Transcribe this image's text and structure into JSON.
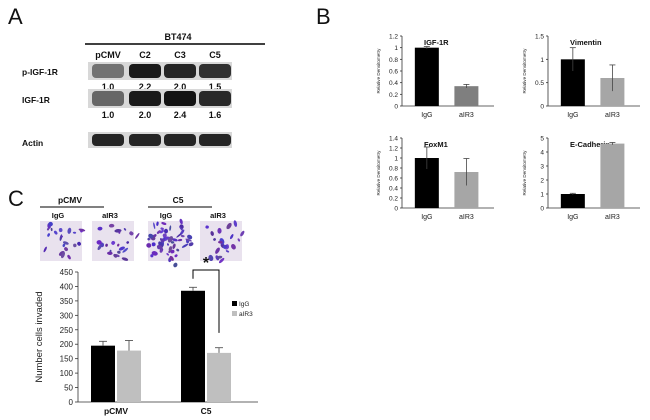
{
  "panel_a": {
    "letter": "A",
    "cell_line": "BT474",
    "lanes": [
      "pCMV",
      "C2",
      "C3",
      "C5"
    ],
    "rows": [
      {
        "name": "p-IGF-1R",
        "values": [
          "1.0",
          "2.2",
          "2.0",
          "1.5"
        ],
        "intensity": [
          0.55,
          0.95,
          0.9,
          0.85
        ]
      },
      {
        "name": "IGF-1R",
        "values": [
          "1.0",
          "2.0",
          "2.4",
          "1.6"
        ],
        "intensity": [
          0.6,
          0.95,
          0.98,
          0.88
        ]
      },
      {
        "name": "Actin",
        "values": [],
        "intensity": [
          0.9,
          0.9,
          0.9,
          0.9
        ]
      }
    ]
  },
  "panel_b": {
    "letter": "B",
    "ylabel": "Relative Densitometry"
  },
  "panel_c": {
    "letter": "C",
    "image_groups": [
      {
        "title": "pCMV",
        "labels": [
          "IgG",
          "aIR3"
        ]
      },
      {
        "title": "C5",
        "labels": [
          "IgG",
          "aIR3"
        ]
      }
    ],
    "significance": "*"
  },
  "chart_data": [
    {
      "type": "bar",
      "title": "IGF-1R",
      "categories": [
        "IgG",
        "aIR3"
      ],
      "values": [
        1.0,
        0.34
      ],
      "errors": [
        0.02,
        0.03
      ],
      "ylabel": "Relative Densitometry",
      "ylim": [
        0,
        1.2
      ],
      "yticks": [
        "0",
        "0.2",
        "0.4",
        "0.6",
        "0.8",
        "1",
        "1.2"
      ],
      "colors": [
        "#000000",
        "#7f7f7f"
      ]
    },
    {
      "type": "bar",
      "title": "Vimentin",
      "categories": [
        "IgG",
        "aIR3"
      ],
      "values": [
        1.0,
        0.6
      ],
      "errors": [
        0.25,
        0.28
      ],
      "ylabel": "Relative Densitometry",
      "ylim": [
        0,
        1.5
      ],
      "yticks": [
        "0",
        "0.5",
        "1",
        "1.5"
      ],
      "colors": [
        "#000000",
        "#a6a6a6"
      ]
    },
    {
      "type": "bar",
      "title": "FoxM1",
      "categories": [
        "IgG",
        "aIR3"
      ],
      "values": [
        1.0,
        0.72
      ],
      "errors": [
        0.22,
        0.27
      ],
      "ylabel": "Relative Densitometry",
      "ylim": [
        0,
        1.4
      ],
      "yticks": [
        "0",
        "0.2",
        "0.4",
        "0.6",
        "0.8",
        "1",
        "1.2",
        "1.4"
      ],
      "colors": [
        "#000000",
        "#a6a6a6"
      ]
    },
    {
      "type": "bar",
      "title": "E-Cadherin",
      "categories": [
        "IgG",
        "aIR3"
      ],
      "values": [
        1.0,
        4.6
      ],
      "errors": [
        0.05,
        0.08
      ],
      "ylabel": "Relative Densitometry",
      "ylim": [
        0,
        5
      ],
      "yticks": [
        "0",
        "1",
        "2",
        "3",
        "4",
        "5"
      ],
      "colors": [
        "#000000",
        "#a6a6a6"
      ]
    },
    {
      "type": "bar",
      "title": "",
      "categories": [
        "pCMV",
        "C5"
      ],
      "series": [
        {
          "name": "IgG",
          "values": [
            195,
            385
          ],
          "errors": [
            15,
            12
          ],
          "color": "#000000"
        },
        {
          "name": "aIR3",
          "values": [
            178,
            170
          ],
          "errors": [
            35,
            18
          ],
          "color": "#bfbfbf"
        }
      ],
      "ylabel": "Number cells invaded",
      "ylim": [
        0,
        450
      ],
      "yticks": [
        "0",
        "50",
        "100",
        "150",
        "200",
        "250",
        "300",
        "350",
        "400",
        "450"
      ],
      "legend": "right"
    }
  ]
}
